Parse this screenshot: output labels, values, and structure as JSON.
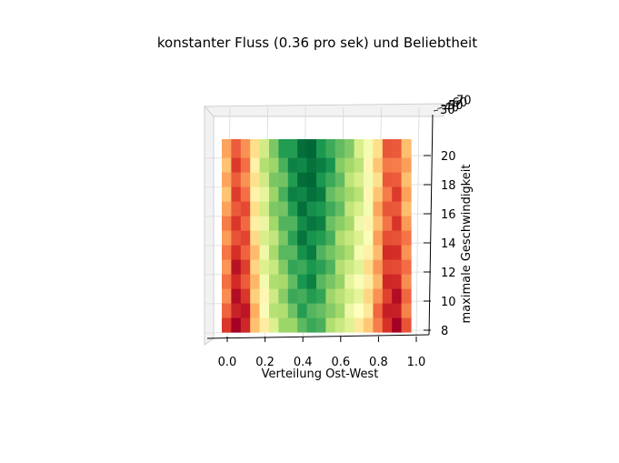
{
  "chart_data": {
    "type": "heatmap",
    "projection": "3d-surface-top-view",
    "title": "konstanter Fluss (0.36 pro sek) und Beliebtheit",
    "xlabel": "Verteilung Ost-West",
    "ylabel": "maximale Geschwindigkeit",
    "zlabel": "",
    "xlim": [
      -0.05,
      1.05
    ],
    "ylim": [
      7.5,
      21.5
    ],
    "zlim": [
      30,
      70
    ],
    "x_ticks": [
      "0.0",
      "0.2",
      "0.4",
      "0.6",
      "0.8",
      "1.0"
    ],
    "y_ticks": [
      "8",
      "10",
      "12",
      "14",
      "16",
      "18",
      "20"
    ],
    "z_ticks": [
      "30",
      "40",
      "50",
      "60",
      "70"
    ],
    "colormap": "RdYlGn",
    "x": [
      0.0,
      0.05,
      0.1,
      0.15,
      0.2,
      0.25,
      0.3,
      0.35,
      0.4,
      0.45,
      0.5,
      0.55,
      0.6,
      0.65,
      0.7,
      0.75,
      0.8,
      0.85,
      0.9,
      0.95,
      1.0
    ],
    "y": [
      8,
      9,
      10,
      11,
      12,
      13,
      14,
      15,
      16,
      17,
      18,
      19,
      20,
      21
    ],
    "z_profile_x": [
      45,
      38,
      34,
      42,
      51,
      56,
      60,
      63,
      66,
      68,
      67,
      64,
      61,
      58,
      55,
      52,
      47,
      40,
      35,
      38,
      45
    ],
    "z_trend_y": [
      -4,
      -3,
      -2,
      -1.5,
      -1,
      -0.5,
      0,
      0.5,
      1,
      1.5,
      2,
      2,
      2.5,
      2.5
    ]
  }
}
